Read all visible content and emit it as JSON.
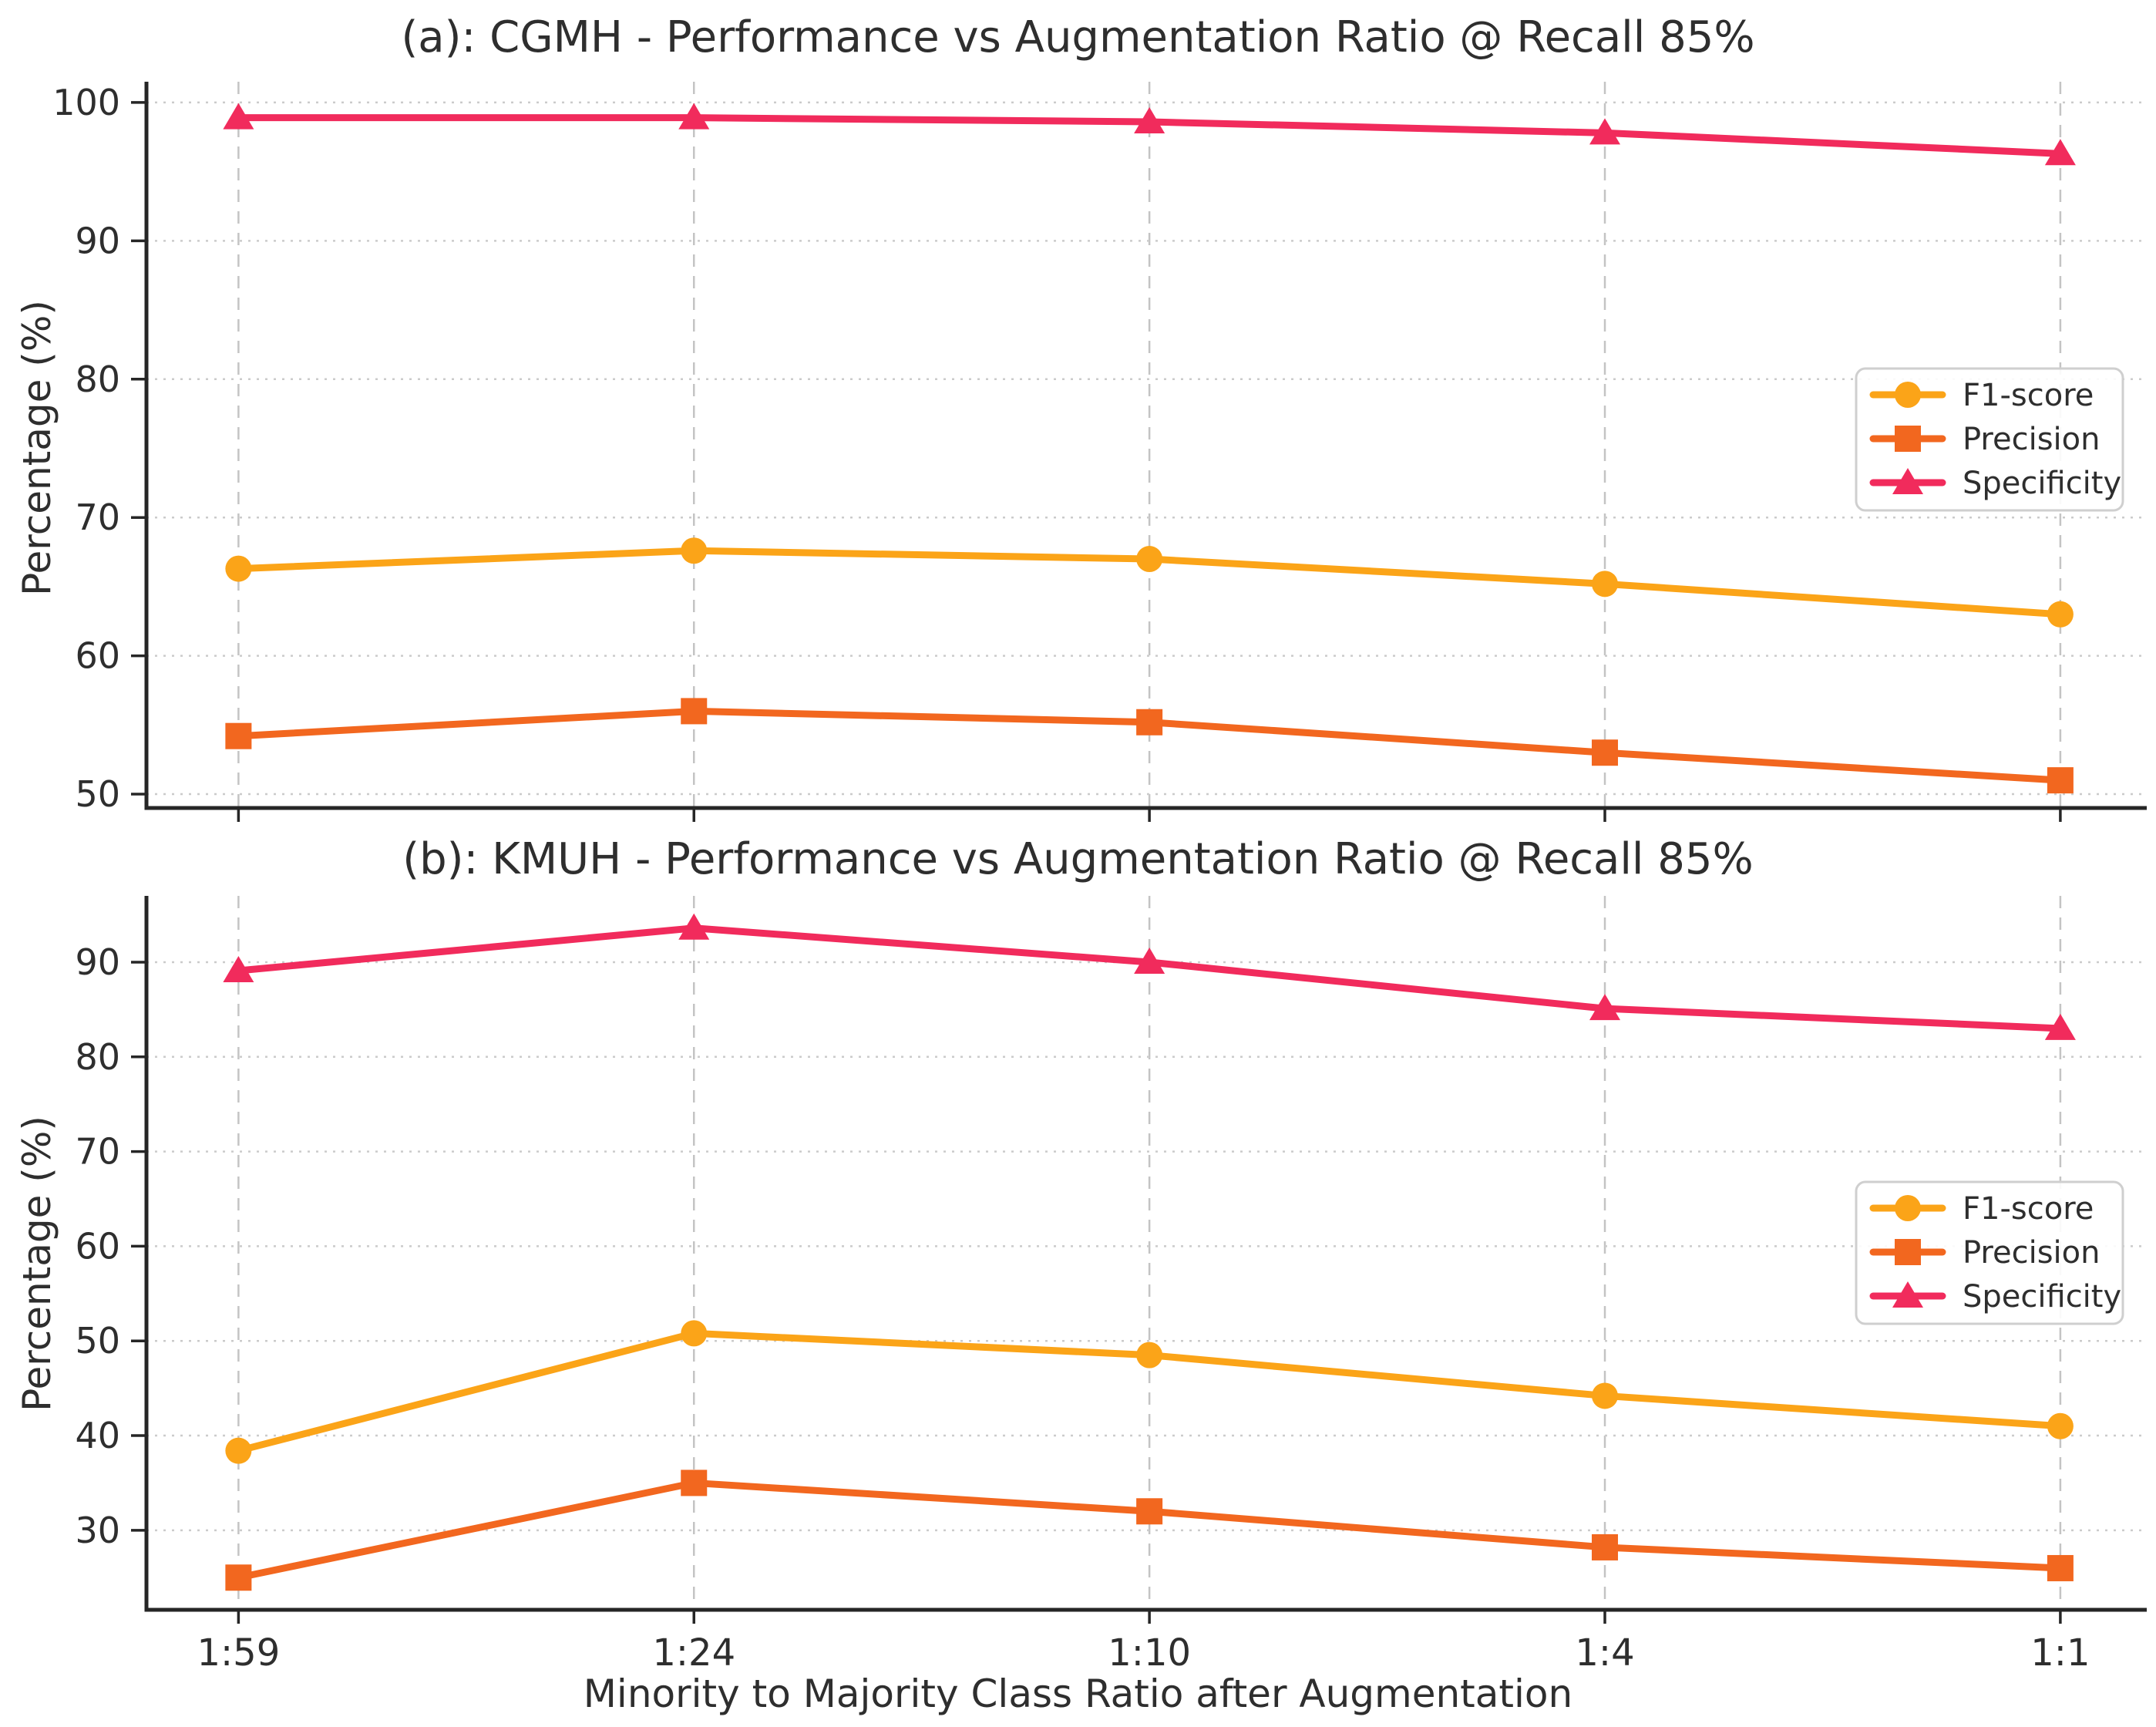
{
  "figure": {
    "background": "#ffffff",
    "text_color": "#2e2e2e",
    "spine_color": "#262626",
    "vgrid_color": "#c4c4c4",
    "hgrid_color": "#cbcbcb"
  },
  "chart_data": [
    {
      "type": "line",
      "title": "(a): CGMH - Performance vs Augmentation Ratio @ Recall 85%",
      "xlabel": "",
      "ylabel": "Percentage (%)",
      "categories": [
        "1:59",
        "1:24",
        "1:10",
        "1:4",
        "1:1"
      ],
      "yticks": [
        50,
        60,
        70,
        80,
        90,
        100
      ],
      "ylim": [
        49.0,
        101.5
      ],
      "grid": true,
      "show_x_tick_labels": false,
      "legend_position": "center right",
      "legend_entries": [
        "F1-score",
        "Precision",
        "Specificity"
      ],
      "series": [
        {
          "name": "F1-score",
          "marker": "circle",
          "color": "#FBA418",
          "values": [
            66.3,
            67.6,
            67.0,
            65.2,
            63.0
          ]
        },
        {
          "name": "Precision",
          "marker": "square",
          "color": "#F2671F",
          "values": [
            54.2,
            56.0,
            55.2,
            53.0,
            51.0
          ]
        },
        {
          "name": "Specificity",
          "marker": "triangle",
          "color": "#F12B5C",
          "values": [
            98.9,
            98.9,
            98.6,
            97.8,
            96.3
          ]
        }
      ]
    },
    {
      "type": "line",
      "title": "(b): KMUH - Performance vs Augmentation Ratio @ Recall 85%",
      "xlabel": "Minority to Majority Class Ratio after Augmentation",
      "ylabel": "Percentage (%)",
      "categories": [
        "1:59",
        "1:24",
        "1:10",
        "1:4",
        "1:1"
      ],
      "yticks": [
        30,
        40,
        50,
        60,
        70,
        80,
        90
      ],
      "ylim": [
        21.6,
        97.0
      ],
      "grid": true,
      "show_x_tick_labels": true,
      "legend_position": "center right",
      "legend_entries": [
        "F1-score",
        "Precision",
        "Specificity"
      ],
      "series": [
        {
          "name": "F1-score",
          "marker": "circle",
          "color": "#FBA418",
          "values": [
            38.4,
            50.8,
            48.5,
            44.2,
            41.0
          ]
        },
        {
          "name": "Precision",
          "marker": "square",
          "color": "#F2671F",
          "values": [
            25.0,
            35.0,
            32.0,
            28.2,
            26.0
          ]
        },
        {
          "name": "Specificity",
          "marker": "triangle",
          "color": "#F12B5C",
          "values": [
            89.1,
            93.6,
            90.0,
            85.1,
            83.0
          ]
        }
      ]
    }
  ]
}
